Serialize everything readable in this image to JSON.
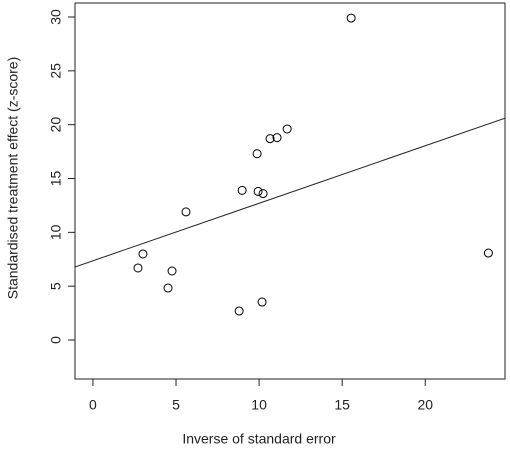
{
  "chart_data": {
    "type": "scatter",
    "xlabel": "Inverse of standard error",
    "ylabel": "Standardised treatment effect (z-score)",
    "x": [
      15.54,
      23.8,
      2.71,
      3.01,
      4.76,
      4.52,
      5.6,
      8.8,
      8.98,
      9.94,
      10.24,
      10.18,
      9.88,
      10.66,
      11.08,
      11.69
    ],
    "values": [
      29.9,
      8.08,
      6.69,
      7.99,
      6.41,
      4.83,
      11.9,
      2.69,
      13.9,
      13.8,
      13.6,
      3.53,
      17.3,
      18.7,
      18.8,
      19.6
    ],
    "color": "#000000",
    "fit": {
      "intercept": 7.36,
      "slope": 0.534
    },
    "xlim": [
      -1.08,
      24.8
    ],
    "ylim": [
      -3.62,
      31.3
    ],
    "xticks": [
      0,
      5,
      10,
      15,
      20
    ],
    "yticks": [
      0,
      5,
      10,
      15,
      20,
      25,
      30
    ]
  }
}
